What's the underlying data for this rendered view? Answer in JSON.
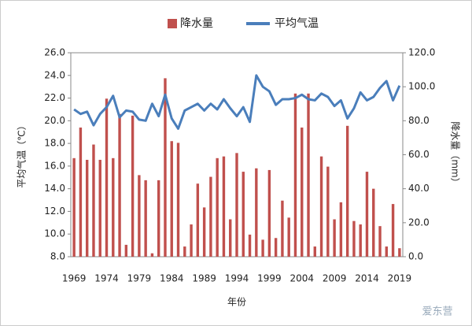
{
  "chart_data": {
    "type": "bar-line",
    "categories": [
      "1969",
      null,
      null,
      null,
      null,
      "1974",
      null,
      null,
      null,
      null,
      "1979",
      null,
      null,
      null,
      null,
      "1984",
      null,
      null,
      null,
      null,
      "1989",
      null,
      null,
      null,
      null,
      "1994",
      null,
      null,
      null,
      null,
      "1999",
      null,
      null,
      null,
      null,
      "2004",
      null,
      null,
      null,
      null,
      "2009",
      null,
      null,
      null,
      null,
      "2014",
      null,
      null,
      null,
      null,
      "2019"
    ],
    "series": [
      {
        "name": "降水量",
        "color": "#c0504d",
        "type": "bar",
        "axis": "y2",
        "values": [
          58,
          76,
          57,
          66,
          57,
          93,
          58,
          84,
          7,
          83,
          48,
          45,
          2,
          45,
          105,
          68,
          67,
          6,
          19,
          43,
          29,
          47,
          58,
          59,
          22,
          61,
          50,
          13,
          52,
          10,
          51,
          11,
          33,
          23,
          96,
          76,
          96,
          6,
          59,
          53,
          22,
          32,
          77,
          21,
          19,
          50,
          40,
          18,
          6,
          31,
          5
        ]
      },
      {
        "name": "平均气温",
        "color": "#4a7ebb",
        "type": "line",
        "axis": "y",
        "values": [
          21.0,
          20.6,
          20.8,
          19.6,
          20.6,
          21.2,
          22.2,
          20.3,
          20.9,
          20.8,
          20.1,
          20.0,
          21.5,
          20.4,
          22.3,
          20.2,
          19.3,
          20.9,
          21.2,
          21.5,
          20.9,
          21.5,
          21.0,
          21.9,
          21.1,
          20.4,
          21.2,
          19.9,
          24.0,
          23.0,
          22.6,
          21.4,
          21.9,
          21.9,
          22.0,
          22.3,
          21.9,
          21.8,
          22.4,
          22.1,
          21.3,
          21.8,
          20.2,
          21.1,
          22.5,
          21.8,
          22.1,
          22.9,
          23.5,
          21.8,
          23.1
        ]
      }
    ],
    "y_label": "平均气温（℃）",
    "y2_label": "降水量（mm）",
    "x_label": "年份",
    "ylim": [
      8,
      26
    ],
    "yticks": [
      {
        "value": 8,
        "label": "8.0"
      },
      {
        "value": 10,
        "label": "10.0"
      },
      {
        "value": 12,
        "label": "12.0"
      },
      {
        "value": 14,
        "label": "14.0"
      },
      {
        "value": 16,
        "label": "16.0"
      },
      {
        "value": 18,
        "label": "18.0"
      },
      {
        "value": 20,
        "label": "20.0"
      },
      {
        "value": 22,
        "label": "22.0"
      },
      {
        "value": 24,
        "label": "24.0"
      },
      {
        "value": 26,
        "label": "26.0"
      }
    ],
    "y2lim": [
      0,
      120
    ],
    "y2ticks": [
      {
        "value": 0,
        "label": "0.0"
      },
      {
        "value": 20,
        "label": "20.0"
      },
      {
        "value": 40,
        "label": "40.0"
      },
      {
        "value": 60,
        "label": "60.0"
      },
      {
        "value": 80,
        "label": "80.0"
      },
      {
        "value": 100,
        "label": "100.0"
      },
      {
        "value": 120,
        "label": "120.0"
      }
    ],
    "legend": "top"
  },
  "watermark": "爱东营"
}
